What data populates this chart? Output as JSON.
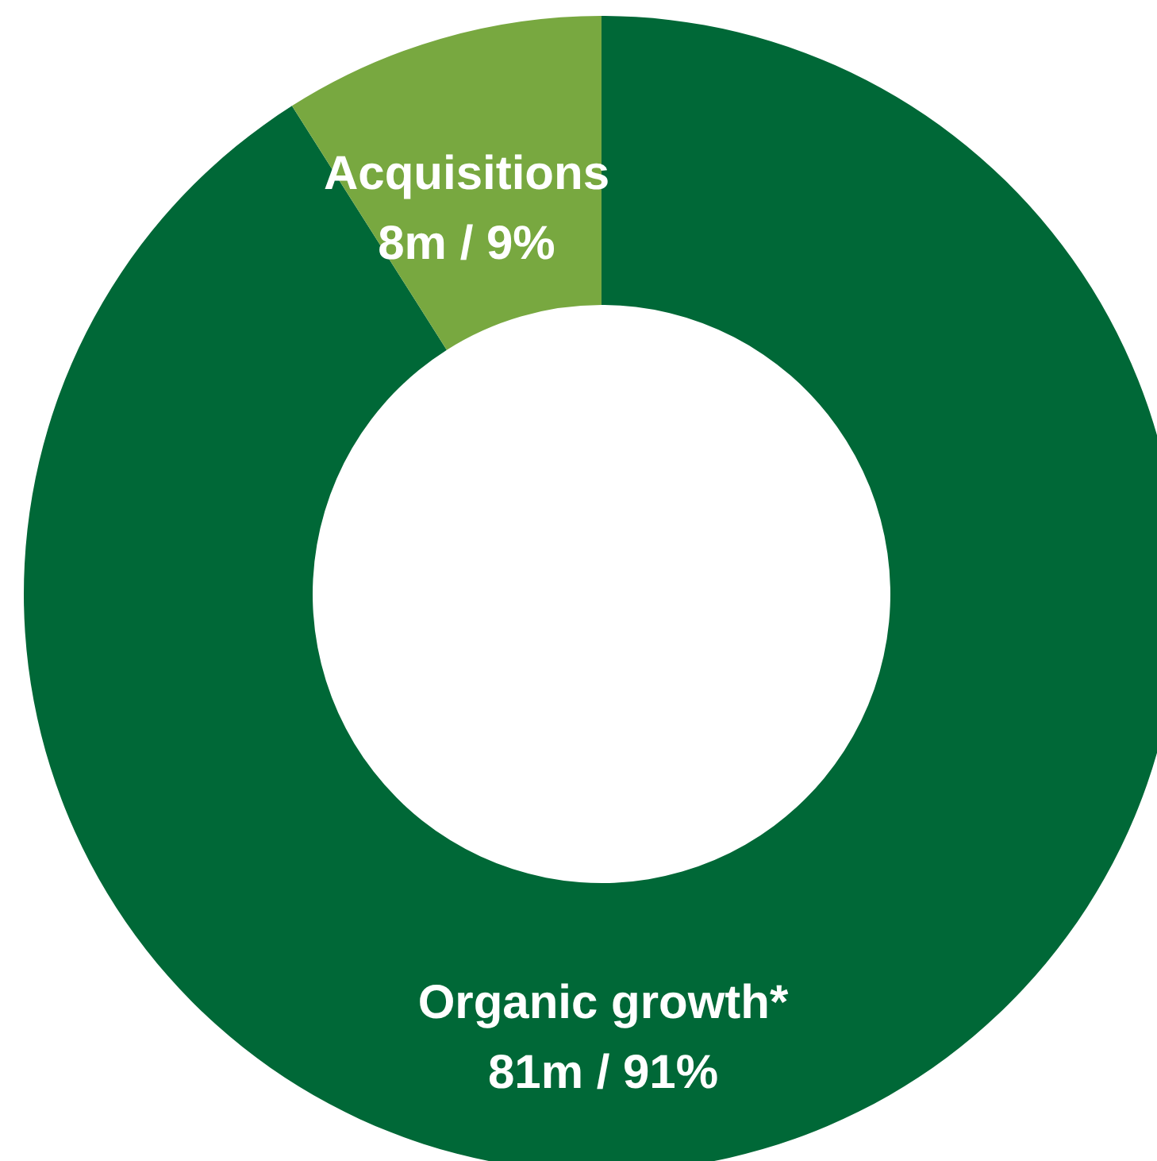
{
  "chart_data": {
    "type": "donut",
    "categories": [
      "Organic growth*",
      "Acquisitions"
    ],
    "values": [
      91,
      9
    ],
    "colors": [
      "#006837",
      "#78a840"
    ],
    "value_labels": [
      "81m / 91%",
      "8m / 9%"
    ]
  }
}
